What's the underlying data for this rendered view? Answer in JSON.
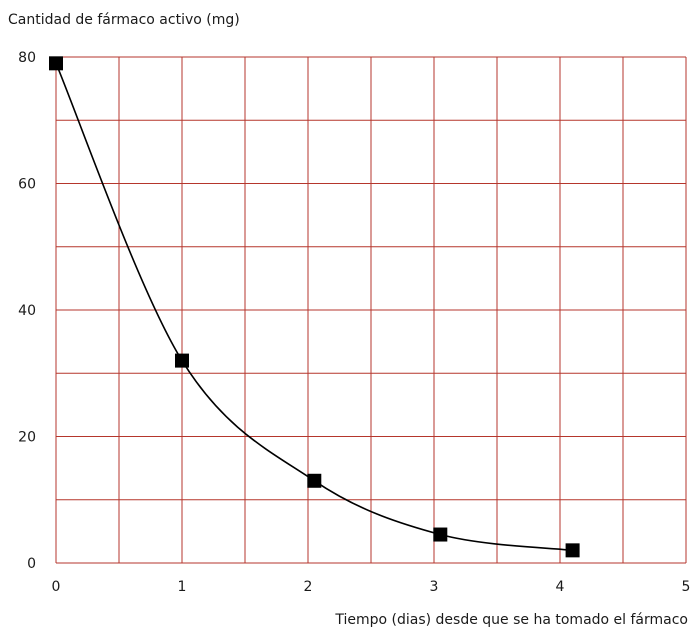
{
  "chart_data": {
    "type": "line",
    "ylabel": "Cantidad de fármaco activo (mg)",
    "xlabel": "Tiempo (dias) desde que se ha tomado el fármaco",
    "xlim": [
      0,
      5
    ],
    "ylim": [
      0,
      80
    ],
    "x_ticks": [
      "0",
      "1",
      "2",
      "3",
      "4",
      "5"
    ],
    "y_ticks": [
      "0",
      "20",
      "40",
      "60",
      "80"
    ],
    "x_grid_step": 0.5,
    "y_grid_step": 10,
    "grid": true,
    "series": [
      {
        "x": [
          0,
          1,
          2.05,
          3.05,
          4.1
        ],
        "y": [
          79,
          32,
          13,
          4.5,
          2
        ],
        "color": "#000000"
      }
    ],
    "grid_color": "#b5362c",
    "marker": "square"
  }
}
